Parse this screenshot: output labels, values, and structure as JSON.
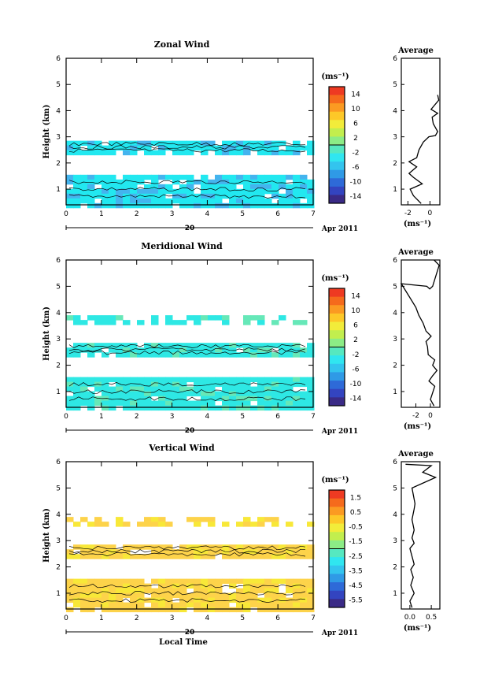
{
  "chart_data": [
    {
      "type": "heatmap",
      "title": "Zonal Wind",
      "ylabel": "Height (km)",
      "xlim": [
        0,
        7
      ],
      "ylim": [
        0.4,
        6
      ],
      "x_ticks": [
        "0",
        "1",
        "2",
        "3",
        "4",
        "5",
        "6",
        "7"
      ],
      "y_ticks": [
        "1",
        "2",
        "3",
        "4",
        "5",
        "6"
      ],
      "date_day": "20",
      "date_label": "Apr 2011",
      "colorbar": {
        "unit": "(ms⁻¹)",
        "ticks": [
          "14",
          "10",
          "6",
          "2",
          "-2",
          "-6",
          "-10",
          "-14"
        ],
        "range": [
          -16,
          16
        ]
      },
      "fill_color": "#22e8f0",
      "patch_color": "#44b4ee",
      "bands": [
        [
          0.45,
          1.55
        ],
        [
          2.35,
          2.85
        ]
      ],
      "average": {
        "title": "Average",
        "xlabel": "(ms⁻¹)",
        "x_ticks": [
          "-2",
          "0"
        ],
        "xlim": [
          -2.6,
          0.9
        ],
        "y_ticks": [
          "1",
          "2",
          "3",
          "4",
          "5",
          "6"
        ],
        "profile": [
          [
            -0.8,
            0.45
          ],
          [
            -1.5,
            0.75
          ],
          [
            -1.8,
            1.0
          ],
          [
            -0.7,
            1.2
          ],
          [
            -1.5,
            1.45
          ],
          [
            -1.9,
            1.6
          ],
          [
            -1.2,
            1.85
          ],
          [
            -1.9,
            2.05
          ],
          [
            -1.2,
            2.2
          ],
          [
            -1.0,
            2.5
          ],
          [
            -0.6,
            2.8
          ],
          [
            -0.1,
            3.0
          ],
          [
            0.5,
            3.05
          ],
          [
            0.7,
            3.2
          ],
          [
            0.3,
            3.5
          ],
          [
            0.2,
            3.75
          ],
          [
            0.7,
            3.9
          ],
          [
            0.3,
            4.0
          ],
          [
            0.1,
            4.05
          ],
          [
            0.8,
            4.4
          ],
          [
            0.7,
            4.6
          ]
        ]
      }
    },
    {
      "type": "heatmap",
      "title": "Meridional Wind",
      "ylabel": "Height (km)",
      "xlim": [
        0,
        7
      ],
      "ylim": [
        0.4,
        6
      ],
      "x_ticks": [
        "0",
        "1",
        "2",
        "3",
        "4",
        "5",
        "6",
        "7"
      ],
      "y_ticks": [
        "1",
        "2",
        "3",
        "4",
        "5",
        "6"
      ],
      "date_day": "20",
      "date_label": "Apr 2011",
      "colorbar": {
        "unit": "(ms⁻¹)",
        "ticks": [
          "14",
          "10",
          "6",
          "2",
          "-2",
          "-6",
          "-10",
          "-14"
        ],
        "range": [
          -16,
          16
        ]
      },
      "fill_color": "#2ee8e4",
      "patch_color": "#66e8b8",
      "bands": [
        [
          0.45,
          1.55
        ],
        [
          2.35,
          2.85
        ],
        [
          3.7,
          3.9
        ]
      ],
      "average": {
        "title": "Average",
        "xlabel": "(ms⁻¹)",
        "x_ticks": [
          "-2",
          "0"
        ],
        "xlim": [
          -4.0,
          1.3
        ],
        "y_ticks": [
          "1",
          "2",
          "3",
          "4",
          "5",
          "6"
        ],
        "profile": [
          [
            0.5,
            0.45
          ],
          [
            0.0,
            0.7
          ],
          [
            0.3,
            0.95
          ],
          [
            0.6,
            1.2
          ],
          [
            -0.2,
            1.4
          ],
          [
            0.3,
            1.6
          ],
          [
            0.9,
            1.8
          ],
          [
            0.3,
            2.0
          ],
          [
            0.6,
            2.2
          ],
          [
            -0.3,
            2.4
          ],
          [
            -0.4,
            2.7
          ],
          [
            -0.6,
            2.9
          ],
          [
            0.1,
            3.1
          ],
          [
            -0.6,
            3.3
          ],
          [
            -1.0,
            3.6
          ],
          [
            -1.6,
            3.9
          ],
          [
            -2.0,
            4.2
          ],
          [
            -4.0,
            5.1
          ],
          [
            -0.5,
            5.0
          ],
          [
            -0.1,
            4.9
          ],
          [
            0.3,
            5.0
          ],
          [
            1.2,
            5.8
          ],
          [
            0.5,
            6.0
          ]
        ]
      }
    },
    {
      "type": "heatmap",
      "title": "Vertical Wind",
      "ylabel": "Height (km)",
      "xlabel": "Local Time",
      "xlim": [
        0,
        7
      ],
      "ylim": [
        0.4,
        6
      ],
      "x_ticks": [
        "0",
        "1",
        "2",
        "3",
        "4",
        "5",
        "6",
        "7"
      ],
      "y_ticks": [
        "1",
        "2",
        "3",
        "4",
        "5",
        "6"
      ],
      "date_day": "20",
      "date_label": "Apr 2011",
      "colorbar": {
        "unit": "(ms⁻¹)",
        "ticks": [
          "1.5",
          "0.5",
          "-0.5",
          "-1.5",
          "-2.5",
          "-3.5",
          "-4.5",
          "-5.5"
        ],
        "range": [
          -6,
          2
        ]
      },
      "fill_color": "#fdd34a",
      "patch_color": "#f8e838",
      "bands": [
        [
          0.45,
          1.55
        ],
        [
          2.35,
          2.85
        ],
        [
          3.7,
          3.9
        ]
      ],
      "average": {
        "title": "Average",
        "xlabel": "(ms⁻¹)",
        "x_ticks": [
          "0.0",
          "0.5"
        ],
        "xlim": [
          -0.2,
          0.7
        ],
        "y_ticks": [
          "1",
          "2",
          "3",
          "4",
          "5",
          "6"
        ],
        "profile": [
          [
            0.05,
            0.45
          ],
          [
            0.0,
            0.7
          ],
          [
            0.1,
            1.0
          ],
          [
            0.02,
            1.3
          ],
          [
            0.08,
            1.6
          ],
          [
            0.02,
            1.9
          ],
          [
            0.1,
            2.1
          ],
          [
            0.05,
            2.4
          ],
          [
            0.0,
            2.7
          ],
          [
            0.1,
            2.9
          ],
          [
            0.05,
            3.1
          ],
          [
            0.1,
            3.4
          ],
          [
            0.05,
            3.8
          ],
          [
            0.1,
            4.2
          ],
          [
            0.12,
            4.4
          ],
          [
            0.05,
            5.0
          ],
          [
            0.6,
            5.4
          ],
          [
            0.3,
            5.6
          ],
          [
            0.5,
            5.85
          ],
          [
            -0.1,
            5.9
          ]
        ]
      }
    }
  ]
}
